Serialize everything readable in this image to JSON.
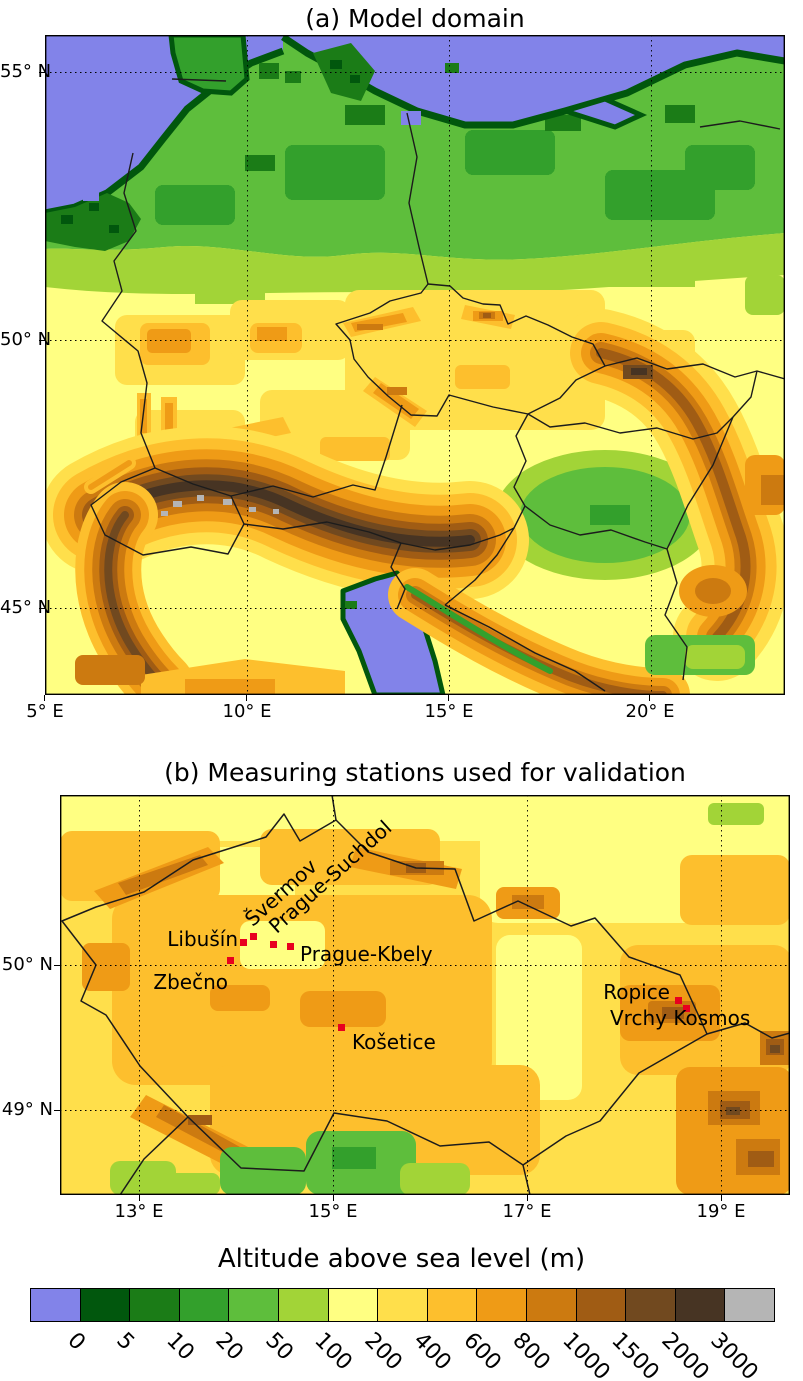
{
  "panel_a": {
    "title": "(a) Model domain",
    "x_ticks": [
      "5° E",
      "10° E",
      "15° E",
      "20° E"
    ],
    "y_ticks": [
      "55° N",
      "50° N",
      "45° N"
    ]
  },
  "panel_b": {
    "title": "(b) Measuring stations used for validation",
    "x_ticks": [
      "13° E",
      "15° E",
      "17° E",
      "19° E"
    ],
    "y_ticks": [
      "50° N",
      "49° N"
    ],
    "station_marker_color": "#e8001f",
    "stations": [
      {
        "name": "Zbečno"
      },
      {
        "name": "Libušín"
      },
      {
        "name": "Švermov"
      },
      {
        "name": "Prague-Suchdol"
      },
      {
        "name": "Prague-Kbely"
      },
      {
        "name": "Košetice"
      },
      {
        "name": "Ropice"
      },
      {
        "name": "Vrchy Kosmos"
      }
    ]
  },
  "legend": {
    "title": "Altitude above sea level (m)",
    "tick_labels": [
      "0",
      "5",
      "10",
      "20",
      "50",
      "100",
      "200",
      "400",
      "600",
      "800",
      "1000",
      "1500",
      "2000",
      "3000"
    ],
    "colors": [
      "#8283e9",
      "#01570d",
      "#1b7c17",
      "#33a02c",
      "#5ebe3c",
      "#a2d437",
      "#ffff82",
      "#ffdf4b",
      "#fdbf2d",
      "#ef9b16",
      "#cc7a10",
      "#a05c14",
      "#71491f",
      "#473423",
      "#b5b5b5"
    ]
  },
  "chart_data": {
    "type": "heatmap",
    "variable": "Altitude above sea level (m)",
    "panels": [
      {
        "id": "a",
        "title": "(a) Model domain",
        "lon_ticks_deg_e": [
          5,
          10,
          15,
          20
        ],
        "lat_ticks_deg_n": [
          55,
          50,
          45
        ]
      },
      {
        "id": "b",
        "title": "(b) Measuring stations used for validation",
        "lon_ticks_deg_e": [
          13,
          15,
          17,
          19
        ],
        "lat_ticks_deg_n": [
          50,
          49
        ]
      }
    ],
    "altitude_bin_edges_m": [
      0,
      5,
      10,
      20,
      50,
      100,
      200,
      400,
      600,
      800,
      1000,
      1500,
      2000,
      3000
    ],
    "bin_colors": [
      "#8283e9",
      "#01570d",
      "#1b7c17",
      "#33a02c",
      "#5ebe3c",
      "#a2d437",
      "#ffff82",
      "#ffdf4b",
      "#fdbf2d",
      "#ef9b16",
      "#cc7a10",
      "#a05c14",
      "#71491f",
      "#473423",
      "#b5b5b5"
    ],
    "stations": [
      "Zbečno",
      "Libušín",
      "Švermov",
      "Prague-Suchdol",
      "Prague-Kbely",
      "Košetice",
      "Ropice",
      "Vrchy Kosmos"
    ]
  }
}
